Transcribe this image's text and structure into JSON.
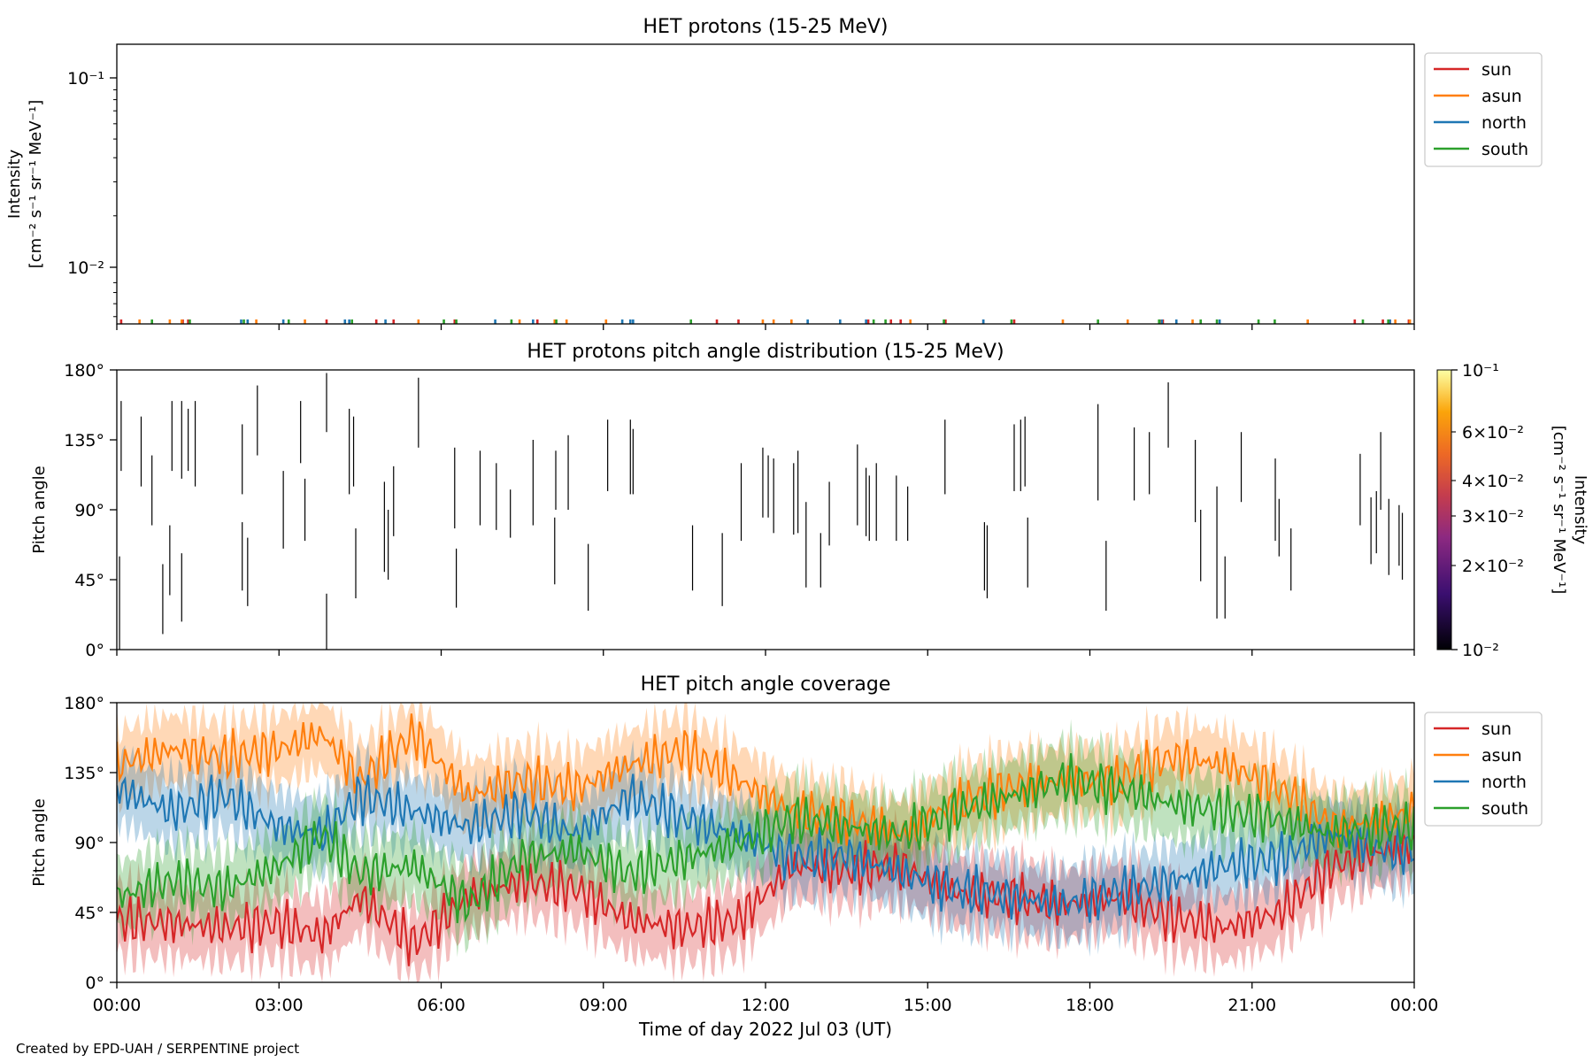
{
  "footer": {
    "credit": "Created by EPD-UAH / SERPENTINE project"
  },
  "colors": {
    "sun": "#d62728",
    "asun": "#ff7f0e",
    "north": "#1f77b4",
    "south": "#2ca02c"
  },
  "chart_data": [
    {
      "type": "line",
      "title": "HET protons (15-25 MeV)",
      "ylabel": [
        "Intensity",
        "[cm⁻² s⁻¹ sr⁻¹ MeV⁻¹]"
      ],
      "yscale": "log",
      "ylim": [
        0.0055,
        0.155
      ],
      "ytick_labels": [
        "10⁻¹",
        "10⁻²"
      ],
      "xlim_hours": [
        0,
        24
      ],
      "legend": {
        "placement": "outside top-right",
        "entries": [
          "sun",
          "asun",
          "north",
          "south"
        ]
      },
      "series": [
        {
          "name": "sun",
          "color": "#d62728",
          "spike_times_h": [
            0.08,
            1.22,
            1.32,
            3.88,
            4.8,
            5.12,
            6.25,
            7.78,
            11.1,
            11.5,
            13.9,
            14.32,
            14.5,
            15.33,
            16.03,
            16.6,
            19.35,
            22.9,
            23.42,
            23.55,
            23.9
          ]
        },
        {
          "name": "asun",
          "color": "#ff7f0e",
          "spike_times_h": [
            0.42,
            0.98,
            1.2,
            2.58,
            3.48,
            5.58,
            7.45,
            8.1,
            8.32,
            9.05,
            11.95,
            12.15,
            12.48,
            14.68,
            17.5,
            18.7,
            19.3,
            19.9,
            22.03,
            23.65,
            23.92
          ]
        },
        {
          "name": "north",
          "color": "#1f77b4",
          "spike_times_h": [
            2.3,
            2.42,
            3.08,
            4.22,
            4.3,
            4.97,
            7.0,
            7.7,
            9.35,
            9.5,
            9.55,
            12.78,
            13.38,
            13.86,
            16.03,
            19.33,
            19.6,
            20.4,
            23.55
          ]
        },
        {
          "name": "south",
          "color": "#2ca02c",
          "spike_times_h": [
            0.65,
            1.35,
            2.35,
            3.18,
            4.35,
            6.05,
            6.28,
            7.3,
            8.13,
            10.62,
            14.0,
            14.22,
            15.3,
            16.55,
            18.15,
            19.28,
            20.05,
            20.35,
            21.12,
            21.42,
            23.05,
            23.52
          ]
        }
      ]
    },
    {
      "type": "heatmap",
      "title": "HET protons pitch angle distribution (15-25 MeV)",
      "ylabel": "Pitch angle",
      "ylim": [
        0,
        180
      ],
      "yticks": [
        "0°",
        "45°",
        "90°",
        "135°",
        "180°"
      ],
      "colorbar": {
        "label": [
          "Intensity",
          "[cm⁻² s⁻¹ sr⁻¹ MeV⁻¹]"
        ],
        "scale": "log",
        "range": [
          0.01,
          0.1
        ],
        "tick_labels": [
          "10⁻¹",
          "6×10⁻²",
          "4×10⁻²",
          "3×10⁻²",
          "2×10⁻²",
          "10⁻²"
        ]
      },
      "segments": [
        [
          0.05,
          60,
          0
        ],
        [
          0.08,
          160,
          115
        ],
        [
          0.45,
          150,
          105
        ],
        [
          0.65,
          125,
          80
        ],
        [
          0.85,
          55,
          10
        ],
        [
          0.98,
          80,
          35
        ],
        [
          1.02,
          160,
          115
        ],
        [
          1.2,
          160,
          110
        ],
        [
          1.2,
          62,
          18
        ],
        [
          1.32,
          155,
          115
        ],
        [
          1.45,
          160,
          105
        ],
        [
          2.32,
          145,
          100
        ],
        [
          2.32,
          82,
          38
        ],
        [
          2.42,
          72,
          28
        ],
        [
          2.6,
          170,
          125
        ],
        [
          3.08,
          115,
          65
        ],
        [
          3.4,
          160,
          120
        ],
        [
          3.48,
          110,
          70
        ],
        [
          3.88,
          178,
          140
        ],
        [
          3.88,
          36,
          0
        ],
        [
          4.3,
          155,
          100
        ],
        [
          4.38,
          150,
          105
        ],
        [
          4.42,
          78,
          33
        ],
        [
          4.95,
          108,
          50
        ],
        [
          5.02,
          90,
          45
        ],
        [
          5.12,
          118,
          73
        ],
        [
          5.58,
          175,
          130
        ],
        [
          6.25,
          130,
          78
        ],
        [
          6.28,
          65,
          27
        ],
        [
          6.72,
          128,
          80
        ],
        [
          7.02,
          120,
          77
        ],
        [
          7.28,
          103,
          72
        ],
        [
          7.7,
          135,
          80
        ],
        [
          8.12,
          128,
          90
        ],
        [
          8.1,
          85,
          42
        ],
        [
          8.35,
          138,
          90
        ],
        [
          8.72,
          68,
          25
        ],
        [
          9.08,
          148,
          102
        ],
        [
          9.5,
          148,
          100
        ],
        [
          9.55,
          142,
          100
        ],
        [
          10.65,
          80,
          38
        ],
        [
          11.2,
          75,
          28
        ],
        [
          11.55,
          120,
          70
        ],
        [
          11.95,
          130,
          85
        ],
        [
          12.05,
          125,
          85
        ],
        [
          12.15,
          123,
          75
        ],
        [
          12.52,
          120,
          74
        ],
        [
          12.6,
          128,
          75
        ],
        [
          12.75,
          95,
          40
        ],
        [
          13.02,
          75,
          40
        ],
        [
          13.18,
          108,
          67
        ],
        [
          13.7,
          132,
          80
        ],
        [
          13.86,
          117,
          73
        ],
        [
          13.92,
          112,
          70
        ],
        [
          14.05,
          120,
          70
        ],
        [
          14.42,
          112,
          70
        ],
        [
          14.63,
          105,
          70
        ],
        [
          15.32,
          148,
          100
        ],
        [
          16.05,
          82,
          38
        ],
        [
          16.1,
          80,
          33
        ],
        [
          16.6,
          145,
          102
        ],
        [
          16.72,
          148,
          102
        ],
        [
          16.8,
          150,
          105
        ],
        [
          16.85,
          85,
          40
        ],
        [
          18.15,
          158,
          96
        ],
        [
          18.3,
          70,
          25
        ],
        [
          18.82,
          143,
          96
        ],
        [
          19.1,
          140,
          100
        ],
        [
          19.45,
          172,
          130
        ],
        [
          19.95,
          135,
          82
        ],
        [
          20.05,
          90,
          44
        ],
        [
          20.35,
          105,
          20
        ],
        [
          20.5,
          60,
          20
        ],
        [
          20.8,
          140,
          95
        ],
        [
          21.43,
          123,
          70
        ],
        [
          21.5,
          97,
          60
        ],
        [
          21.72,
          78,
          38
        ],
        [
          23.0,
          126,
          80
        ],
        [
          23.2,
          98,
          55
        ],
        [
          23.3,
          102,
          62
        ],
        [
          23.38,
          140,
          90
        ],
        [
          23.53,
          97,
          48
        ],
        [
          23.72,
          93,
          54
        ],
        [
          23.78,
          88,
          45
        ]
      ]
    },
    {
      "type": "area",
      "title": "HET pitch angle coverage",
      "ylabel": "Pitch angle",
      "xlabel": "Time of day 2022 Jul 03 (UT)",
      "ylim": [
        0,
        180
      ],
      "yticks": [
        "0°",
        "45°",
        "90°",
        "135°",
        "180°"
      ],
      "xticks": [
        "00:00",
        "03:00",
        "06:00",
        "09:00",
        "12:00",
        "15:00",
        "18:00",
        "21:00",
        "00:00"
      ],
      "legend": {
        "placement": "outside top-right",
        "entries": [
          "sun",
          "asun",
          "north",
          "south"
        ]
      },
      "band_half_width_deg": 22,
      "series": [
        {
          "name": "sun",
          "color": "#d62728",
          "x_hours": [
            0,
            1,
            2,
            3,
            3.8,
            4.5,
            5.5,
            6.5,
            7.5,
            8.5,
            9.5,
            10.5,
            11.5,
            12.5,
            13.5,
            14.5,
            15.5,
            16.5,
            17.5,
            18.5,
            19.5,
            20.5,
            21.5,
            22.5,
            23.5,
            24
          ],
          "values": [
            40,
            38,
            35,
            38,
            30,
            55,
            25,
            55,
            65,
            60,
            40,
            35,
            40,
            75,
            72,
            75,
            58,
            55,
            50,
            55,
            42,
            35,
            45,
            75,
            85,
            88
          ]
        },
        {
          "name": "asun",
          "color": "#ff7f0e",
          "x_hours": [
            0,
            1,
            2,
            3,
            3.8,
            4.5,
            5.5,
            6.5,
            7.5,
            8.5,
            9.5,
            10.5,
            11.5,
            12.5,
            13.5,
            14.5,
            15.5,
            16.5,
            17.5,
            18.5,
            19.5,
            20.5,
            21.5,
            22.5,
            23.5,
            24
          ],
          "values": [
            140,
            150,
            145,
            150,
            160,
            130,
            160,
            120,
            130,
            125,
            140,
            150,
            130,
            110,
            105,
            95,
            115,
            125,
            130,
            130,
            145,
            140,
            125,
            100,
            105,
            110
          ]
        },
        {
          "name": "north",
          "color": "#1f77b4",
          "x_hours": [
            0,
            1,
            2,
            3,
            3.8,
            4.5,
            5.5,
            6.5,
            7.5,
            8.5,
            9.5,
            10.5,
            11.5,
            12.5,
            13.5,
            14.5,
            15.5,
            16.5,
            17.5,
            18.5,
            19.5,
            20.5,
            21.5,
            22.5,
            23.5,
            24
          ],
          "values": [
            125,
            110,
            120,
            100,
            95,
            120,
            110,
            100,
            110,
            95,
            120,
            105,
            95,
            80,
            82,
            70,
            60,
            55,
            50,
            58,
            65,
            75,
            80,
            95,
            85,
            85
          ]
        },
        {
          "name": "south",
          "color": "#2ca02c",
          "x_hours": [
            0,
            1,
            2,
            3,
            3.8,
            4.5,
            5.5,
            6.5,
            7.5,
            8.5,
            9.5,
            10.5,
            11.5,
            12.5,
            13.5,
            14.5,
            15.5,
            16.5,
            17.5,
            18.5,
            19.5,
            20.5,
            21.5,
            22.5,
            23.5,
            24
          ],
          "values": [
            55,
            65,
            60,
            75,
            95,
            70,
            75,
            50,
            80,
            85,
            70,
            80,
            90,
            105,
            100,
            95,
            110,
            120,
            130,
            125,
            115,
            110,
            105,
            95,
            100,
            100
          ]
        }
      ]
    }
  ]
}
